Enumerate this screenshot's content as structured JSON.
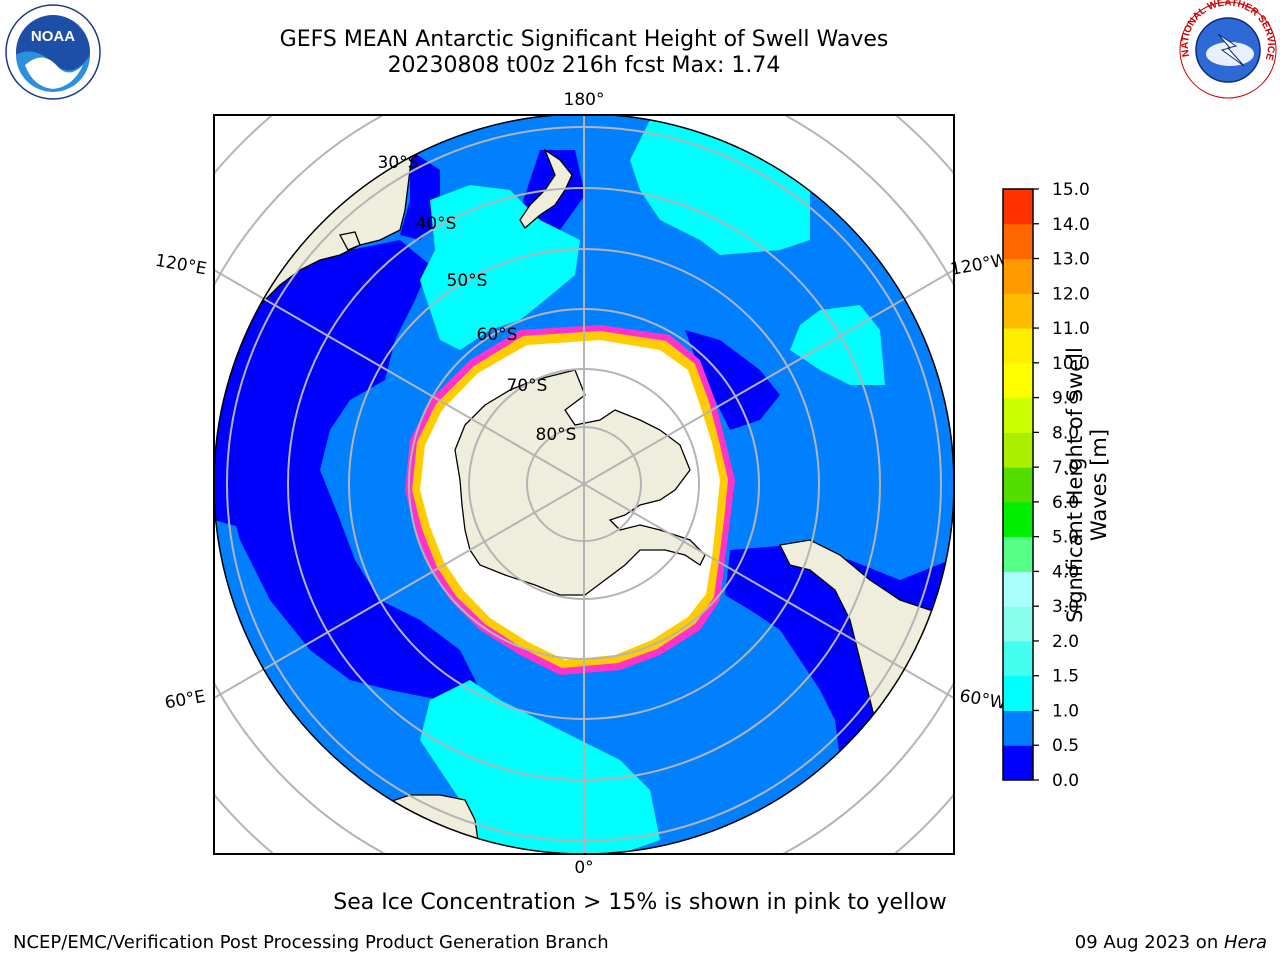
{
  "header": {
    "title_line1": "GEFS MEAN Antarctic Significant Height of Swell Waves",
    "title_line2": "20230808 t00z 216h fcst   Max: 1.74"
  },
  "logos": {
    "left": {
      "name": "noaa-logo",
      "text": "NOAA"
    },
    "right": {
      "name": "national-weather-service-logo",
      "text": "NATIONAL WEATHER SERVICE"
    }
  },
  "map": {
    "longitude_labels": [
      "180°",
      "120°E",
      "120°W",
      "60°E",
      "60°W",
      "0°"
    ],
    "latitude_labels": [
      "30°S",
      "40°S",
      "50°S",
      "60°S",
      "70°S",
      "80°S"
    ],
    "colors": {
      "land": "#efeedc",
      "ocean_0_0.5": "#0000ff",
      "ocean_0.5_1.0": "#0080ff",
      "ocean_1.0_1.5": "#00ffff",
      "sea_ice_low": "#ff33cc",
      "sea_ice_high": "#ffcc00",
      "ice_interior": "#ffffff",
      "grid": "#b4b4b4"
    }
  },
  "colorbar": {
    "label": "Significant Height of Swell Waves [m]",
    "ticks": [
      "0.0",
      "0.5",
      "1.0",
      "1.5",
      "2.0",
      "3.0",
      "4.0",
      "5.0",
      "6.0",
      "7.0",
      "8.0",
      "9.0",
      "10.0",
      "11.0",
      "12.0",
      "13.0",
      "14.0",
      "15.0"
    ],
    "colors": [
      "#0000ff",
      "#0080ff",
      "#00ffff",
      "#44ffee",
      "#88ffee",
      "#aaffff",
      "#55ff88",
      "#00ee00",
      "#55dd00",
      "#aaee00",
      "#ccff00",
      "#ffff00",
      "#ffee00",
      "#ffbb00",
      "#ff9900",
      "#ff6600",
      "#ff3300",
      "#ff0000"
    ]
  },
  "subtitle": "Sea Ice Concentration > 15% is shown in pink to yellow",
  "footer": {
    "left": "NCEP/EMC/Verification Post Processing Product Generation Branch",
    "right_date": "09 Aug 2023 on ",
    "right_host": "Hera"
  }
}
